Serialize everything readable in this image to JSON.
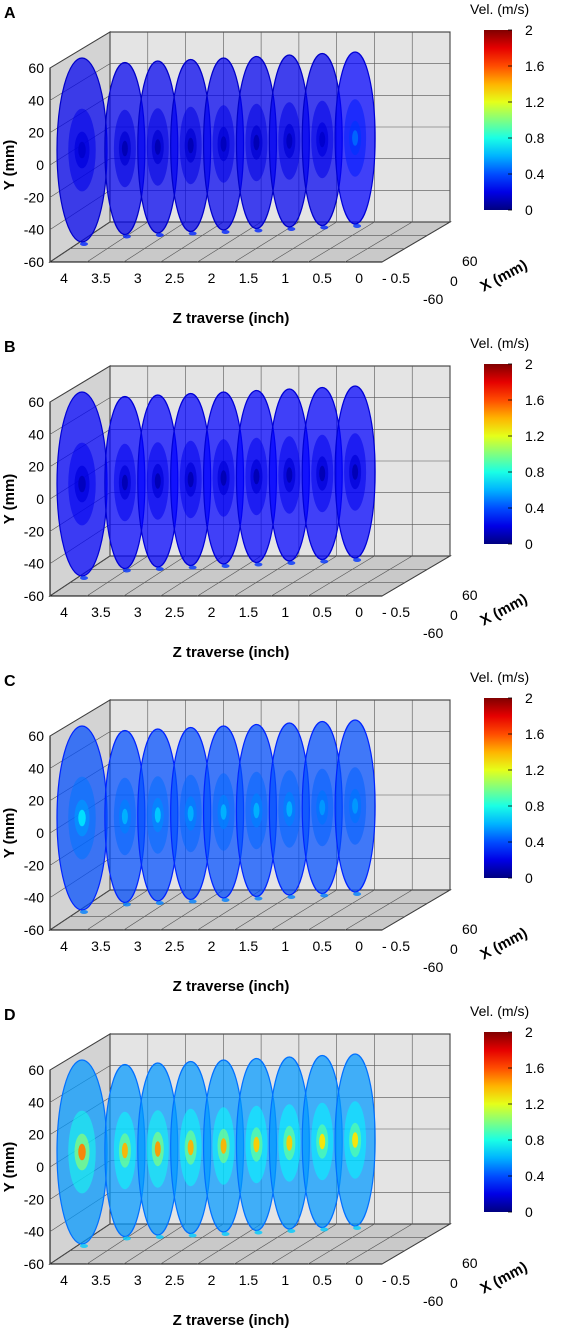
{
  "chart_data": [
    {
      "type": "heatmap",
      "panel_label": "A",
      "colorbar_title": "Vel. (m/s)",
      "colorbar_range": [
        0,
        2
      ],
      "colorbar_ticks": [
        "2",
        "1.6",
        "1.2",
        "0.8",
        "0.4",
        "0"
      ],
      "xlabel": "X (mm)",
      "ylabel": "Y\n(mm)",
      "zlabel": "Z traverse (inch)",
      "x_ticks": [
        "60",
        "0",
        "-60"
      ],
      "y_ticks": [
        "60",
        "40",
        "20",
        "0",
        "-20",
        "-40",
        "-60"
      ],
      "z_ticks": [
        "4",
        "3.5",
        "3",
        "2.5",
        "2",
        "1.5",
        "1",
        "0.5",
        "0",
        "- 0.5"
      ],
      "slice_positions_inch": [
        4,
        3.5,
        3,
        2.5,
        2,
        1.5,
        1,
        0.5,
        0
      ],
      "slice_core_velocity_ms": [
        0.15,
        0.1,
        0.1,
        0.1,
        0.12,
        0.1,
        0.12,
        0.15,
        0.45
      ],
      "slice_bulk_velocity_ms": [
        0.22,
        0.22,
        0.22,
        0.22,
        0.22,
        0.22,
        0.22,
        0.22,
        0.25
      ]
    },
    {
      "type": "heatmap",
      "panel_label": "B",
      "colorbar_title": "Vel. (m/s)",
      "colorbar_range": [
        0,
        2
      ],
      "colorbar_ticks": [
        "2",
        "1.6",
        "1.2",
        "0.8",
        "0.4",
        "0"
      ],
      "xlabel": "X (mm)",
      "ylabel": "Y\n(mm)",
      "zlabel": "Z traverse (inch)",
      "x_ticks": [
        "60",
        "0",
        "-60"
      ],
      "y_ticks": [
        "60",
        "40",
        "20",
        "0",
        "-20",
        "-40",
        "-60"
      ],
      "z_ticks": [
        "4",
        "3.5",
        "3",
        "2.5",
        "2",
        "1.5",
        "1",
        "0.5",
        "0",
        "- 0.5"
      ],
      "slice_positions_inch": [
        4,
        3.5,
        3,
        2.5,
        2,
        1.5,
        1,
        0.5,
        0
      ],
      "slice_core_velocity_ms": [
        0.12,
        0.1,
        0.1,
        0.1,
        0.1,
        0.1,
        0.1,
        0.1,
        0.1
      ],
      "slice_bulk_velocity_ms": [
        0.25,
        0.25,
        0.25,
        0.25,
        0.25,
        0.25,
        0.25,
        0.25,
        0.25
      ]
    },
    {
      "type": "heatmap",
      "panel_label": "C",
      "colorbar_title": "Vel. (m/s)",
      "colorbar_range": [
        0,
        2
      ],
      "colorbar_ticks": [
        "2",
        "1.6",
        "1.2",
        "0.8",
        "0.4",
        "0"
      ],
      "xlabel": "X (mm)",
      "ylabel": "Y\n(mm)",
      "zlabel": "Z traverse  (inch)",
      "x_ticks": [
        "60",
        "0",
        "-60"
      ],
      "y_ticks": [
        "60",
        "40",
        "20",
        "0",
        "-20",
        "-40",
        "-60"
      ],
      "z_ticks": [
        "4",
        "3.5",
        "3",
        "2.5",
        "2",
        "1.5",
        "1",
        "0.5",
        "0",
        "- 0.5"
      ],
      "slice_positions_inch": [
        4,
        3.5,
        3,
        2.5,
        2,
        1.5,
        1,
        0.5,
        0
      ],
      "slice_core_velocity_ms": [
        0.7,
        0.6,
        0.65,
        0.6,
        0.6,
        0.6,
        0.6,
        0.55,
        0.55
      ],
      "slice_bulk_velocity_ms": [
        0.4,
        0.4,
        0.4,
        0.4,
        0.4,
        0.4,
        0.4,
        0.4,
        0.4
      ]
    },
    {
      "type": "heatmap",
      "panel_label": "D",
      "colorbar_title": "Vel. (m/s)",
      "colorbar_range": [
        0,
        2
      ],
      "colorbar_ticks": [
        "2",
        "1.6",
        "1.2",
        "0.8",
        "0.4",
        "0"
      ],
      "xlabel": "X (mm)",
      "ylabel": "Y\n(mm)",
      "zlabel": "Z traverse  (inch)",
      "x_ticks": [
        "60",
        "0",
        "-60"
      ],
      "y_ticks": [
        "60",
        "40",
        "20",
        "0",
        "-20",
        "-40",
        "-60"
      ],
      "z_ticks": [
        "4",
        "3.5",
        "3",
        "2.5",
        "2",
        "1.5",
        "1",
        "0.5",
        "0",
        "- 0.5"
      ],
      "slice_positions_inch": [
        4,
        3.5,
        3,
        2.5,
        2,
        1.5,
        1,
        0.5,
        0
      ],
      "slice_core_velocity_ms": [
        1.5,
        1.4,
        1.45,
        1.4,
        1.4,
        1.35,
        1.35,
        1.3,
        1.3
      ],
      "slice_bulk_velocity_ms": [
        0.55,
        0.55,
        0.55,
        0.55,
        0.55,
        0.55,
        0.55,
        0.55,
        0.55
      ]
    }
  ]
}
